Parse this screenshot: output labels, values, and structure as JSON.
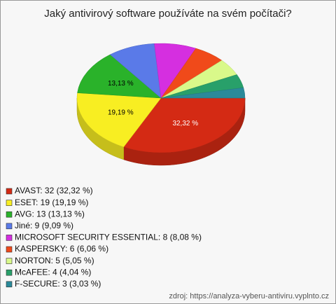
{
  "chart_data": {
    "type": "pie3d",
    "title": "Jaký antivirový software používáte na svém počítači?",
    "categories": [
      "AVAST",
      "ESET",
      "AVG",
      "Jiné",
      "MICROSOFT SECURITY ESSENTIAL",
      "KASPERSKY",
      "NORTON",
      "McAFEE",
      "F-SECURE"
    ],
    "legend_labels": [
      "AVAST: 32 (32,32 %)",
      "ESET: 19 (19,19 %)",
      "AVG: 13 (13,13 %)",
      "Jiné: 9 (9,09 %)",
      "MICROSOFT SECURITY ESSENTIAL: 8 (8,08 %)",
      "KASPERSKY: 6 (6,06 %)",
      "NORTON: 5 (5,05 %)",
      "McAFEE: 4 (4,04 %)",
      "F-SECURE: 3 (3,03 %)"
    ],
    "values": [
      32.32,
      19.19,
      13.13,
      9.09,
      8.08,
      6.06,
      5.05,
      4.04,
      3.03
    ],
    "value_labels": [
      "32,32 %",
      "19,19 %",
      "13,13 %",
      null,
      null,
      null,
      null,
      null,
      null
    ],
    "colors": [
      "#d42a14",
      "#f8ee22",
      "#2ab22a",
      "#5a7ae8",
      "#d52fe0",
      "#f04a1a",
      "#d9f98a",
      "#28a06a",
      "#2a8a9a"
    ],
    "source": "zdroj: https://analyza-vyberu-antiviru.vyplnto.cz"
  }
}
